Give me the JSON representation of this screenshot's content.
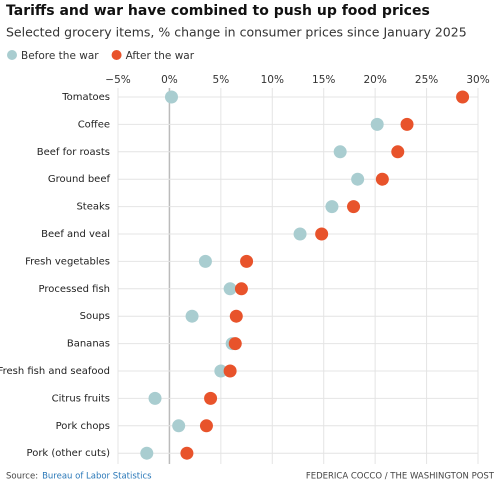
{
  "chart_data": {
    "type": "dot",
    "title": "Tariffs and war have combined to push up food prices",
    "subtitle": "Selected grocery items, % change in consumer prices since January 2025",
    "categories": [
      "Tomatoes",
      "Coffee",
      "Beef for roasts",
      "Ground beef",
      "Steaks",
      "Beef and veal",
      "Fresh vegetables",
      "Processed fish",
      "Soups",
      "Bananas",
      "Fresh fish and seafood",
      "Citrus fruits",
      "Pork chops",
      "Pork (other cuts)"
    ],
    "series": [
      {
        "name": "Before the war",
        "color": "#a9cdd0",
        "values": [
          0.2,
          20.2,
          16.6,
          18.3,
          15.8,
          12.7,
          3.5,
          5.9,
          2.2,
          6.1,
          5.0,
          -1.4,
          0.9,
          -2.2
        ]
      },
      {
        "name": "After the war",
        "color": "#e8532b",
        "values": [
          28.5,
          23.1,
          22.2,
          20.7,
          17.9,
          14.8,
          7.5,
          7.0,
          6.5,
          6.4,
          5.9,
          4.0,
          3.6,
          1.7
        ]
      }
    ],
    "xlim": [
      -5,
      30
    ],
    "xticks": [
      {
        "value": -5,
        "label": "−5%"
      },
      {
        "value": 0,
        "label": "0%"
      },
      {
        "value": 5,
        "label": "5%"
      },
      {
        "value": 10,
        "label": "10%"
      },
      {
        "value": 15,
        "label": "15%"
      },
      {
        "value": 20,
        "label": "20%"
      },
      {
        "value": 25,
        "label": "25%"
      },
      {
        "value": 30,
        "label": "30%"
      }
    ],
    "grid": true,
    "legend": "top-left",
    "source_label": "Source:",
    "source": "Bureau of Labor Statistics",
    "credit": "FEDERICA COCCO / THE WASHINGTON POST"
  }
}
